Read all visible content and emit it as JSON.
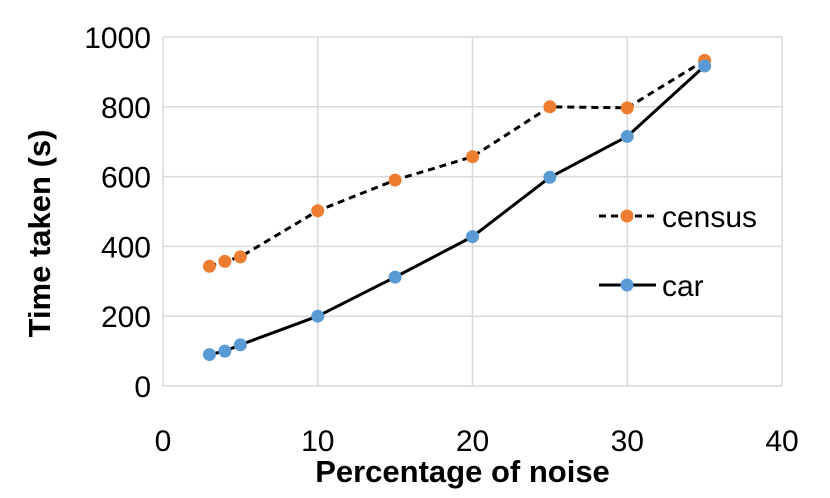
{
  "chart_data": {
    "type": "line",
    "title": "",
    "xlabel": "Percentage of noise",
    "ylabel": "Time taken (s)",
    "xlim": [
      0,
      40
    ],
    "ylim": [
      0,
      1000
    ],
    "xticks": [
      0,
      10,
      20,
      30,
      40
    ],
    "yticks": [
      0,
      200,
      400,
      600,
      800,
      1000
    ],
    "grid": true,
    "legend_position": "right",
    "series": [
      {
        "name": "census",
        "color": "#ED7D31",
        "line_color": "#000000",
        "line_style": "dashed",
        "x": [
          3,
          4,
          5,
          10,
          15,
          20,
          25,
          30,
          35
        ],
        "y": [
          343,
          357,
          370,
          502,
          590,
          657,
          800,
          797,
          933
        ]
      },
      {
        "name": "car",
        "color": "#5B9BD5",
        "line_color": "#000000",
        "line_style": "solid",
        "x": [
          3,
          4,
          5,
          10,
          15,
          20,
          25,
          30,
          35
        ],
        "y": [
          90,
          100,
          118,
          200,
          312,
          428,
          598,
          715,
          917
        ]
      }
    ]
  }
}
